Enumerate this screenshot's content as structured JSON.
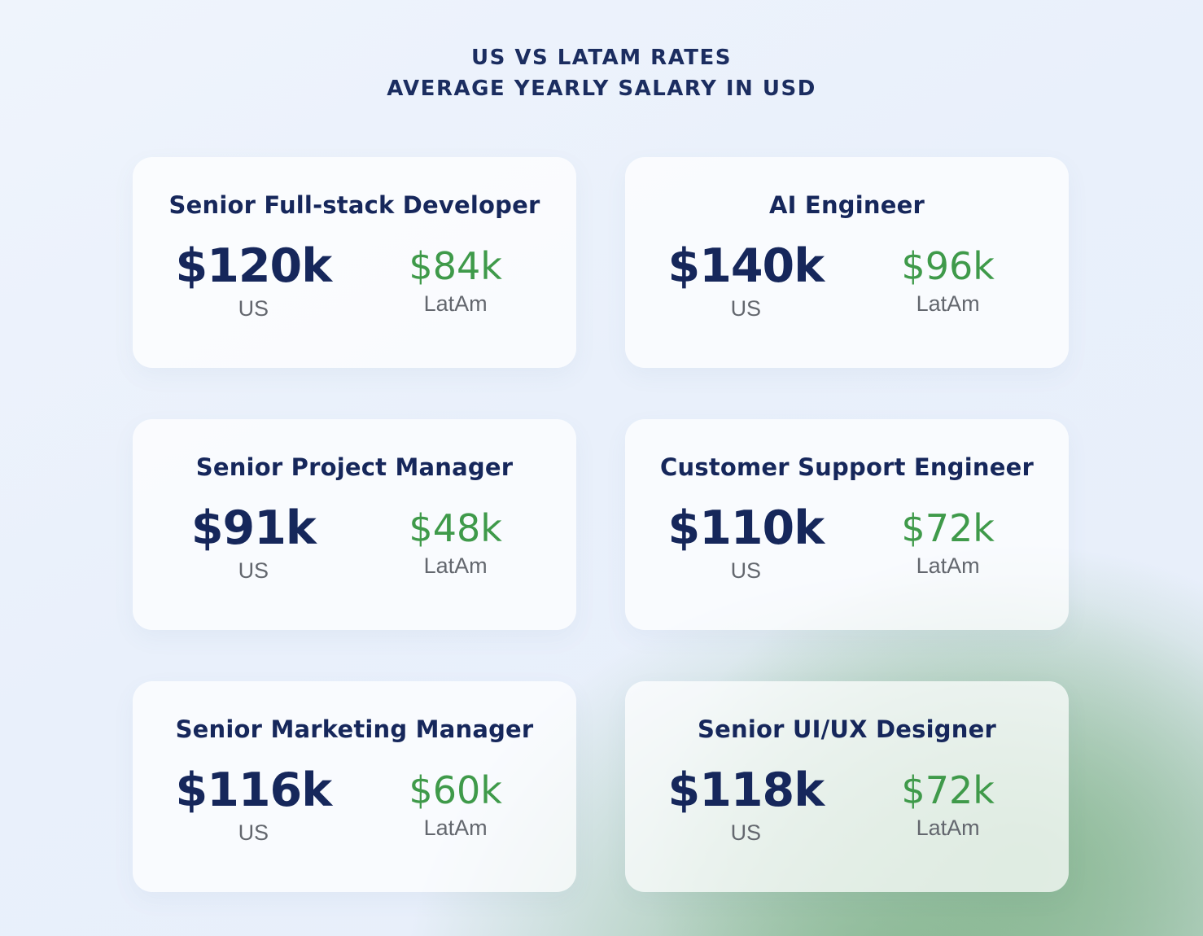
{
  "page": {
    "title_line1": "US VS LATAM RATES",
    "title_line2": "AVERAGE YEARLY SALARY IN USD"
  },
  "colors": {
    "navy_text": "#16275b",
    "green_text": "#3f9a4a",
    "grey_label": "#63676e",
    "background_blue": "#e9f0fb",
    "background_green": "#86b68f",
    "card_background": "rgba(255,255,255,0.72)"
  },
  "cards": [
    {
      "title": "Senior Full-stack Developer",
      "us_value": "$120k",
      "us_label": "US",
      "latam_value": "$84k",
      "latam_label": "LatAm"
    },
    {
      "title": "AI Engineer",
      "us_value": "$140k",
      "us_label": "US",
      "latam_value": "$96k",
      "latam_label": "LatAm"
    },
    {
      "title": "Senior Project Manager",
      "us_value": "$91k",
      "us_label": "US",
      "latam_value": "$48k",
      "latam_label": "LatAm"
    },
    {
      "title": "Customer Support Engineer",
      "us_value": "$110k",
      "us_label": "US",
      "latam_value": "$72k",
      "latam_label": "LatAm"
    },
    {
      "title": "Senior Marketing Manager",
      "us_value": "$116k",
      "us_label": "US",
      "latam_value": "$60k",
      "latam_label": "LatAm"
    },
    {
      "title": "Senior UI/UX Designer",
      "us_value": "$118k",
      "us_label": "US",
      "latam_value": "$72k",
      "latam_label": "LatAm"
    }
  ],
  "chart_data": {
    "type": "table",
    "title": "US VS LATAM RATES — AVERAGE YEARLY SALARY IN USD",
    "categories": [
      "Senior Full-stack Developer",
      "AI Engineer",
      "Senior Project Manager",
      "Customer Support Engineer",
      "Senior Marketing Manager",
      "Senior UI/UX Designer"
    ],
    "series": [
      {
        "name": "US",
        "values": [
          120000,
          140000,
          91000,
          110000,
          116000,
          118000
        ]
      },
      {
        "name": "LatAm",
        "values": [
          84000,
          96000,
          48000,
          72000,
          60000,
          72000
        ]
      }
    ],
    "units": "USD per year"
  }
}
